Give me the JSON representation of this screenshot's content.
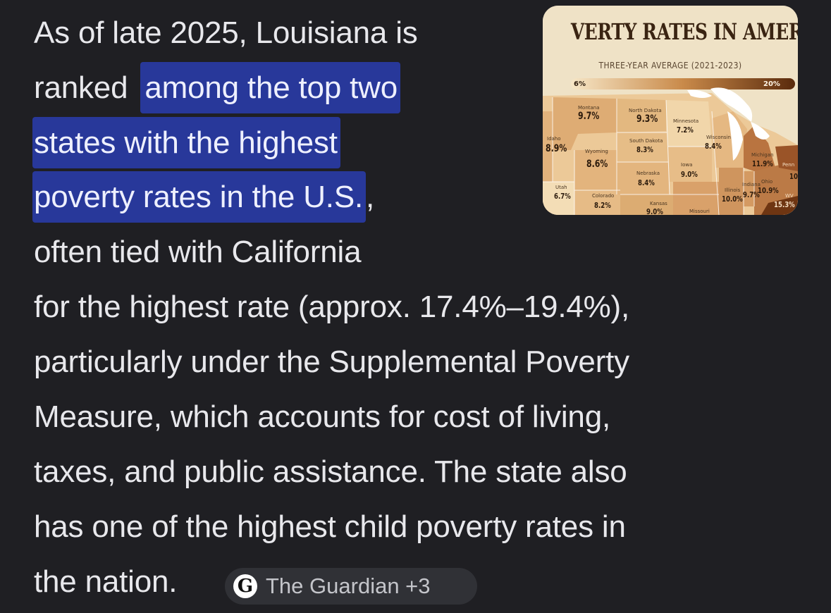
{
  "answer": {
    "line1": "As of late 2025, Louisiana is",
    "line2_plain": "ranked ",
    "line2_hl": "among the top two",
    "line3_hl": "states with the highest",
    "line4_hl": "poverty rates in the U.S.",
    "line4_tail": ",",
    "line5": "often tied with California",
    "line6": "for the highest rate (approx. 17.4%–19.4%),",
    "line7": "particularly under the Supplemental Poverty",
    "line8": "Measure, which accounts for cost of living,",
    "line9": "taxes, and public assistance. The state also",
    "line10": "has one of the highest child poverty rates in",
    "line11": "the nation."
  },
  "thumbnail": {
    "title": "VERTY RATES IN AMERI",
    "subtitle": "THREE-YEAR AVERAGE (2021-2023)",
    "scale_min": "6%",
    "scale_max": "20%",
    "states": {
      "montana": {
        "name": "Montana",
        "value": "9.7%"
      },
      "north_dakota": {
        "name": "North Dakota",
        "value": "9.3%"
      },
      "minnesota": {
        "name": "Minnesota",
        "value": "7.2%"
      },
      "idaho": {
        "name": "Idaho",
        "value": "8.9%"
      },
      "wyoming": {
        "name": "Wyoming",
        "value": "8.6%"
      },
      "south_dakota": {
        "name": "South Dakota",
        "value": "8.3%"
      },
      "wisconsin": {
        "name": "Wisconsin",
        "value": "8.4%"
      },
      "michigan": {
        "name": "Michigan",
        "value": "11.9%"
      },
      "iowa": {
        "name": "Iowa",
        "value": "9.0%"
      },
      "nebraska": {
        "name": "Nebraska",
        "value": "8.4%"
      },
      "utah": {
        "name": "Utah",
        "value": "6.7%"
      },
      "colorado": {
        "name": "Colorado",
        "value": "8.2%"
      },
      "kansas": {
        "name": "Kansas",
        "value": "9.0%"
      },
      "illinois": {
        "name": "Illinois",
        "value": "10.0%"
      },
      "indiana": {
        "name": "Indiana",
        "value": "9.7%"
      },
      "ohio": {
        "name": "Ohio",
        "value": "10.9%"
      },
      "missouri": {
        "name": "Missouri",
        "value": ""
      },
      "wv": {
        "name": "WV",
        "value": "15.3%"
      },
      "pa": {
        "name": "Penn",
        "value": "10"
      }
    }
  },
  "source_chip": {
    "logo_letter": "G",
    "label": "The Guardian +3"
  },
  "colors": {
    "background": "#1f1f23",
    "text": "#e8e8ec",
    "highlight": "#28389a",
    "chip_bg": "#303136"
  }
}
